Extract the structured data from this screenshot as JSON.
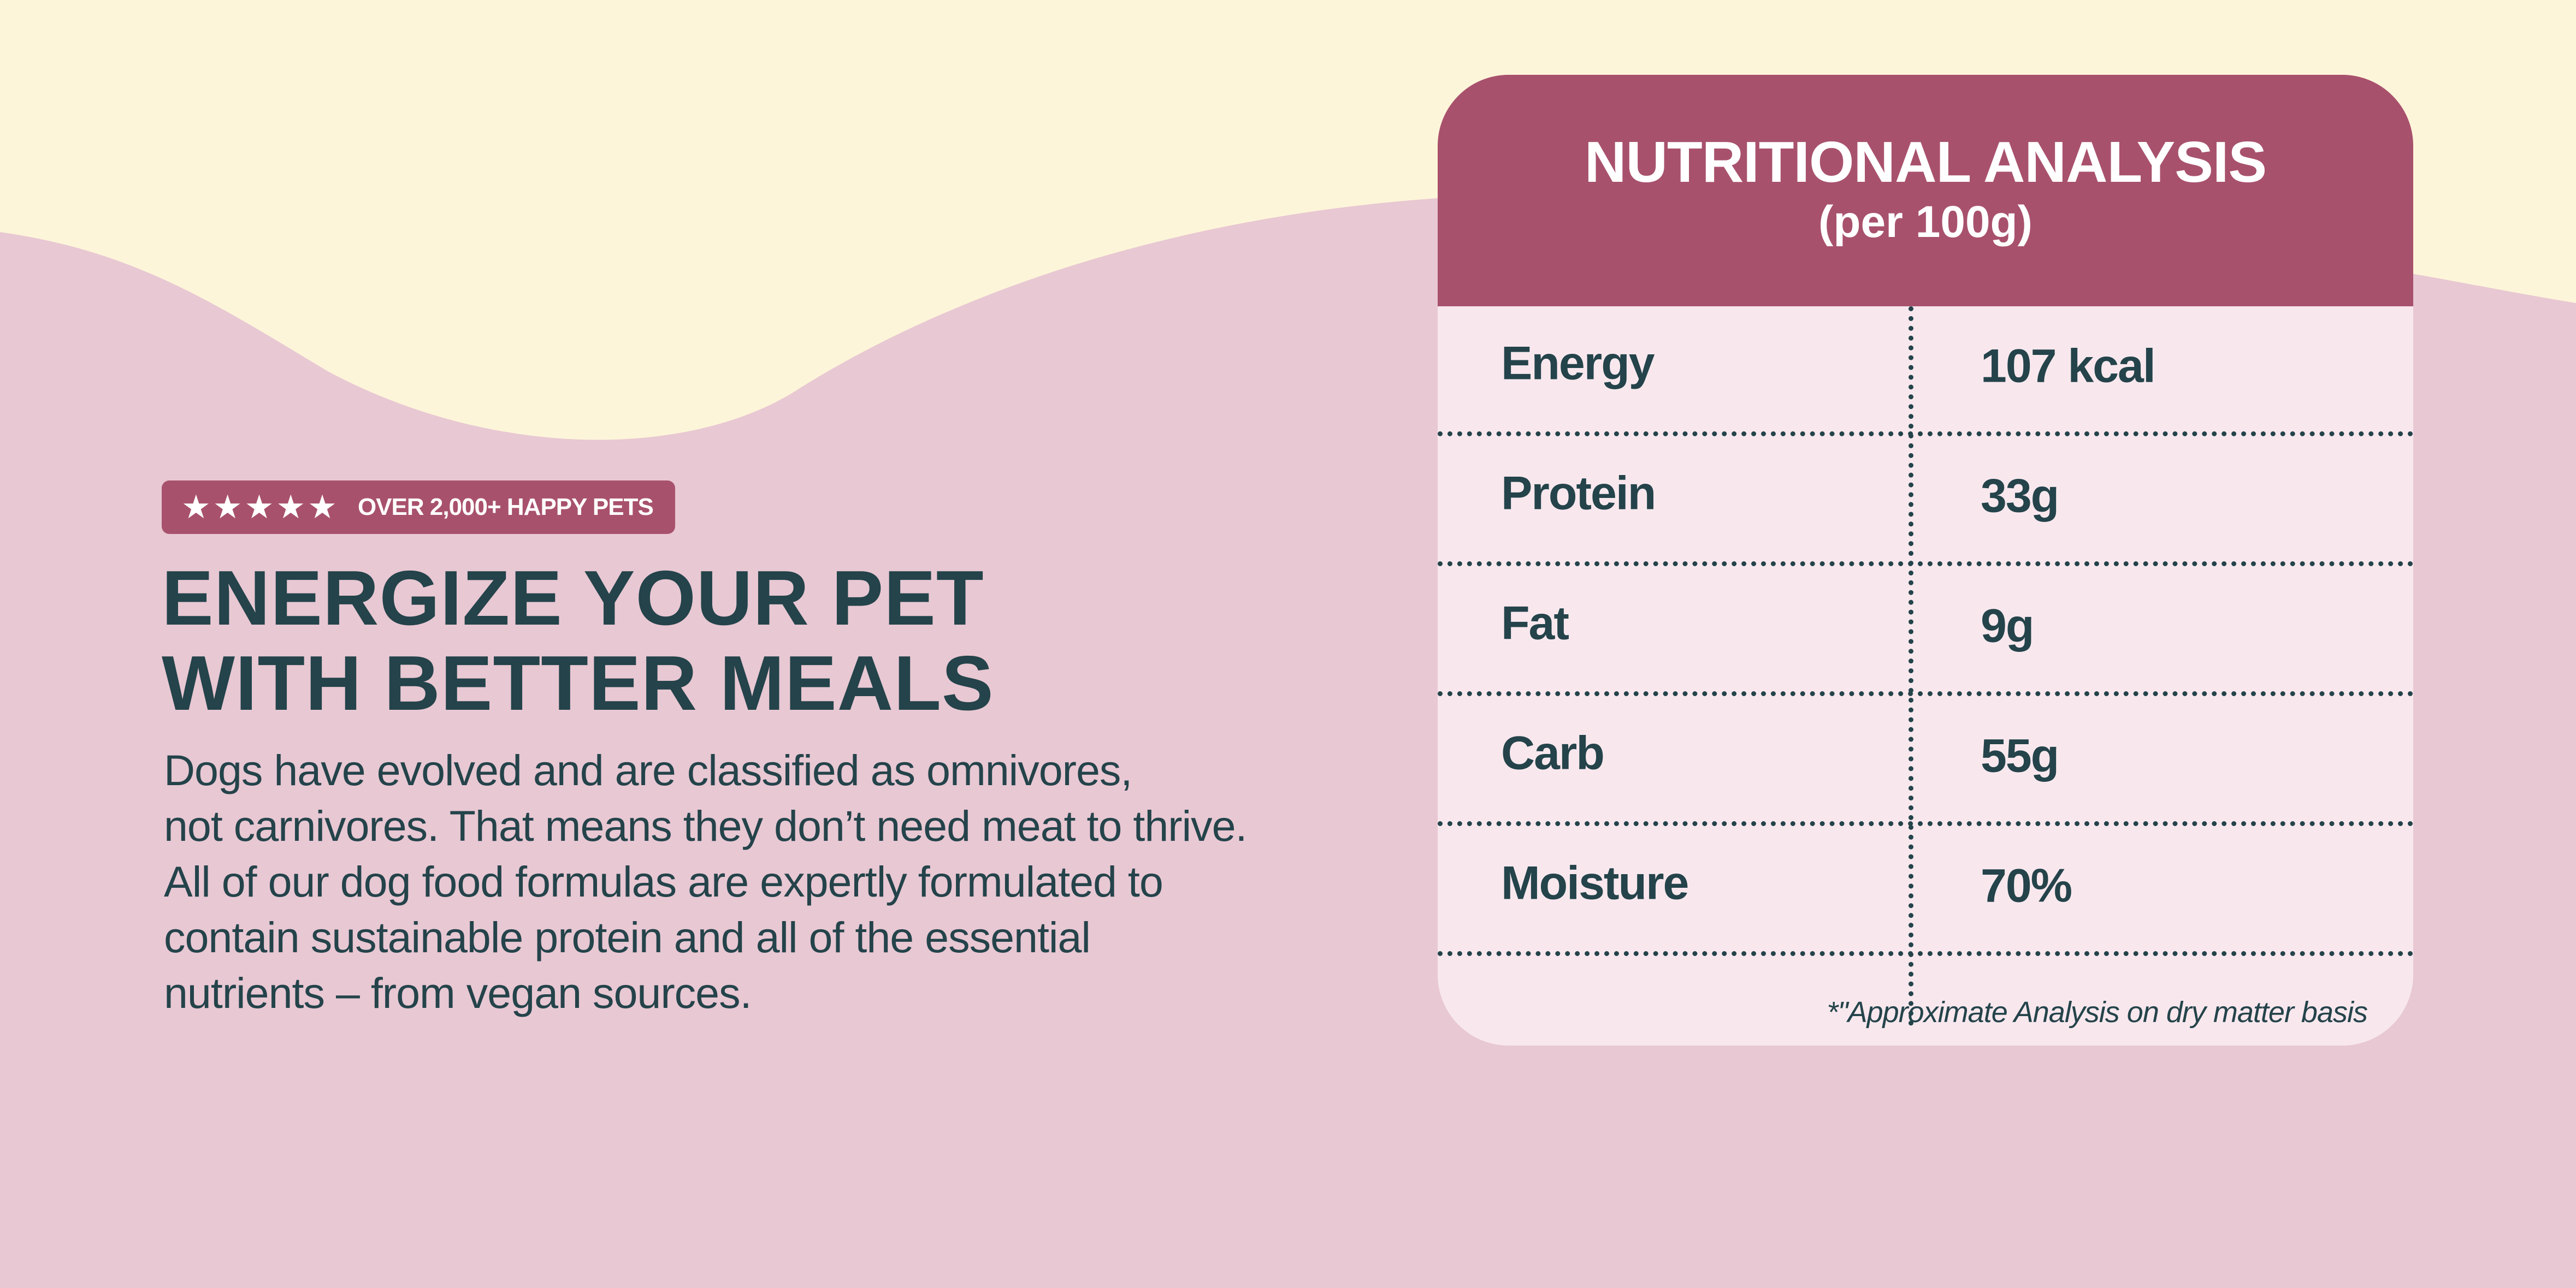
{
  "colors": {
    "background_pink": "#e8c8d3",
    "background_cream": "#fdf5d9",
    "accent": "#a8516d",
    "text": "#24434a",
    "card_bg": "#f8e8ee"
  },
  "badge": {
    "stars": "★★★★★",
    "text": "OVER 2,000+ HAPPY PETS"
  },
  "headline": {
    "line1": "ENERGIZE YOUR PET",
    "line2": "WITH BETTER MEALS"
  },
  "body": {
    "line1": "Dogs have evolved and are classified as omnivores,",
    "line2": "not carnivores. That means they don’t need meat to thrive.",
    "line3": "All of our dog food formulas are expertly formulated to",
    "line4": "contain sustainable protein and all of the essential",
    "line5": "nutrients – from vegan sources."
  },
  "nutrition": {
    "title": "NUTRITIONAL ANALYSIS",
    "subtitle": "(per 100g)",
    "rows": [
      {
        "label": "Energy",
        "value": "107 kcal"
      },
      {
        "label": "Protein",
        "value": "33g"
      },
      {
        "label": "Fat",
        "value": "9g"
      },
      {
        "label": "Carb",
        "value": "55g"
      },
      {
        "label": "Moisture",
        "value": "70%"
      }
    ],
    "footnote": "*\"Approximate Analysis on dry matter basis"
  }
}
